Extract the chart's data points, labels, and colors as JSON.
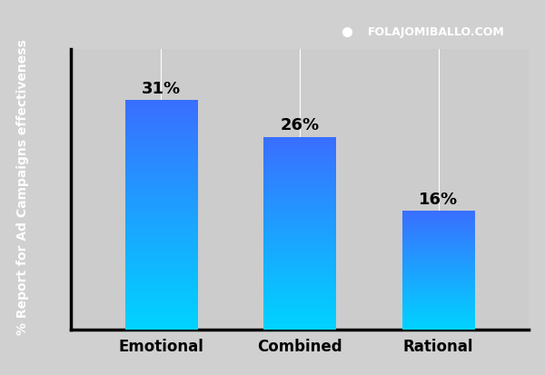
{
  "categories": [
    "Emotional",
    "Combined",
    "Rational"
  ],
  "values": [
    31,
    26,
    16
  ],
  "labels": [
    "31%",
    "26%",
    "16%"
  ],
  "bar_top_color": "#3a6fff",
  "bar_bottom_color": "#00d4ff",
  "background_color": "#d0d0d0",
  "plot_bg_color": "#cccccc",
  "left_strip_color": "#111111",
  "ylabel": "% Report for Ad Campaigns effectiveness",
  "ylabel_color": "#ffffff",
  "ylim": [
    0,
    38
  ],
  "grid_color": "#ffffff",
  "grid_linewidth": 0.8,
  "bar_width": 0.52,
  "label_fontsize": 13,
  "tick_fontsize": 12,
  "ylabel_fontsize": 10,
  "branding_text": "FOLAJOMIBALLO.COM",
  "branding_dot_color": "#ffffff",
  "branding_bg_color": "#000000",
  "branding_text_color": "#ffffff",
  "branding_fontsize": 9
}
